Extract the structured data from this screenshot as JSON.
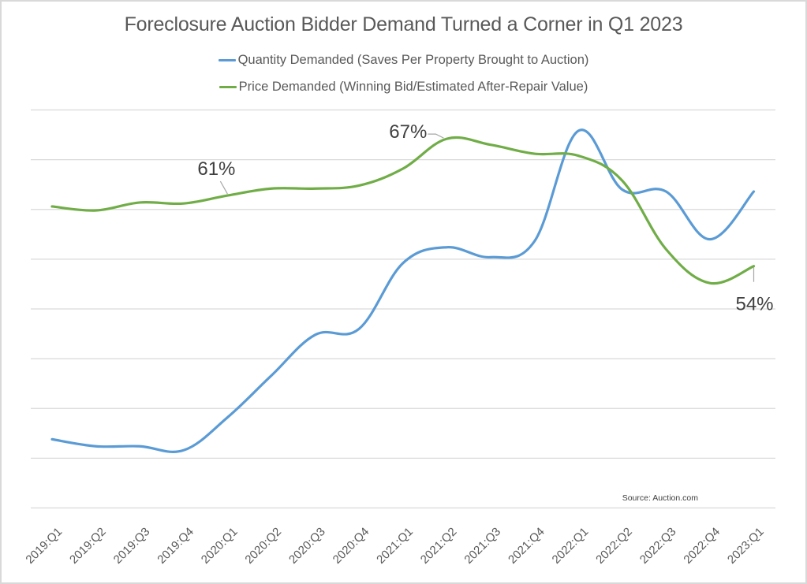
{
  "chart_data": {
    "type": "line",
    "title": "Foreclosure Auction Bidder Demand Turned a Corner in Q1 2023",
    "xlabel": "",
    "ylabel": "",
    "ylim": [
      30,
      70
    ],
    "y_gridlines": [
      30,
      35,
      40,
      45,
      50,
      55,
      60,
      65,
      70
    ],
    "y_tick_labels_visible": false,
    "grid": true,
    "legend_position": "top-center",
    "categories": [
      "2019:Q1",
      "2019:Q2",
      "2019:Q3",
      "2019:Q4",
      "2020:Q1",
      "2020:Q2",
      "2020:Q3",
      "2020:Q4",
      "2021:Q1",
      "2021:Q2",
      "2021:Q3",
      "2021:Q4",
      "2022:Q1",
      "2022:Q2",
      "2022:Q3",
      "2022:Q4",
      "2023:Q1"
    ],
    "series": [
      {
        "name": "Quantity Demanded (Saves Per Property Brought to Auction)",
        "color": "#5b9bd5",
        "values": [
          36.9,
          36.2,
          36.2,
          35.8,
          39.1,
          43.3,
          47.4,
          48.0,
          54.6,
          56.2,
          55.2,
          56.8,
          67.9,
          62.0,
          61.8,
          57.0,
          61.8
        ]
      },
      {
        "name": "Price Demanded (Winning Bid/Estimated After-Repair Value)",
        "color": "#70ad47",
        "values": [
          60.3,
          59.9,
          60.7,
          60.6,
          61.4,
          62.1,
          62.1,
          62.4,
          64.1,
          67.1,
          66.5,
          65.6,
          65.4,
          62.9,
          56.0,
          52.6,
          54.3
        ]
      }
    ],
    "annotations": [
      {
        "series": 1,
        "category": "2020:Q1",
        "text": "61%",
        "placement": "above-left"
      },
      {
        "series": 1,
        "category": "2021:Q2",
        "text": "67%",
        "placement": "left"
      },
      {
        "series": 1,
        "category": "2023:Q1",
        "text": "54%",
        "placement": "below"
      }
    ],
    "source": "Source: Auction.com"
  },
  "colors": {
    "gridline": "#d9d9d9",
    "text": "#595959",
    "leader": "#a6a6a6"
  }
}
